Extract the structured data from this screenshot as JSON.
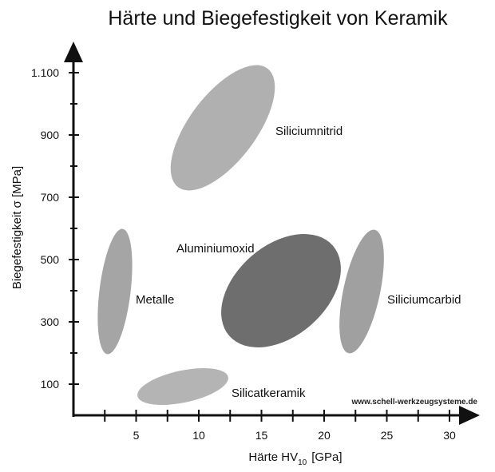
{
  "chart_data": {
    "type": "scatter",
    "title": "Härte und Biegefestigkeit von Keramik",
    "xlabel": "Härte HV",
    "xlabel_subscript": "10",
    "xlabel_unit": "[GPa]",
    "ylabel": "Biegefestigkeit σ [MPa]",
    "xlim": [
      0,
      32
    ],
    "ylim": [
      0,
      1200
    ],
    "x_ticks": [
      5,
      10,
      15,
      20,
      25,
      30
    ],
    "x_tick_labels": [
      "5",
      "10",
      "15",
      "20",
      "25",
      "30"
    ],
    "x_minor_ticks": [
      2.5,
      7.5,
      12.5,
      17.5,
      22.5,
      27.5
    ],
    "y_ticks": [
      100,
      300,
      500,
      700,
      900,
      1100
    ],
    "y_tick_labels": [
      "100",
      "300",
      "500",
      "700",
      "900",
      "1.100"
    ],
    "y_minor_ticks": [
      200,
      400,
      600,
      800,
      1000
    ],
    "grid": false,
    "legend": "none",
    "regions": [
      {
        "name": "Metalle",
        "color": "#a5a5a5",
        "x_range": [
          2.2,
          5.0
        ],
        "y_range": [
          200,
          600
        ],
        "label_at": [
          5.0,
          375
        ]
      },
      {
        "name": "Siliciumnitrid",
        "color": "#b0b0b0",
        "x_range": [
          7.5,
          16.5
        ],
        "y_range": [
          700,
          1150
        ],
        "label_at": [
          16.5,
          920
        ]
      },
      {
        "name": "Aluminiumoxid",
        "color": "#6e6e6e",
        "x_range": [
          12.0,
          21.5
        ],
        "y_range": [
          220,
          590
        ],
        "label_at": [
          8.0,
          555
        ]
      },
      {
        "name": "Siliciumcarbid",
        "color": "#a0a0a0",
        "x_range": [
          21.3,
          24.9
        ],
        "y_range": [
          200,
          590
        ],
        "label_at": [
          25.0,
          375
        ]
      },
      {
        "name": "Silicatkeramik",
        "color": "#b4b4b4",
        "x_range": [
          5.0,
          12.5
        ],
        "y_range": [
          55,
          155
        ],
        "label_at": [
          13.0,
          85
        ]
      }
    ],
    "annotation": "www.schell-werkzeugsysteme.de"
  }
}
